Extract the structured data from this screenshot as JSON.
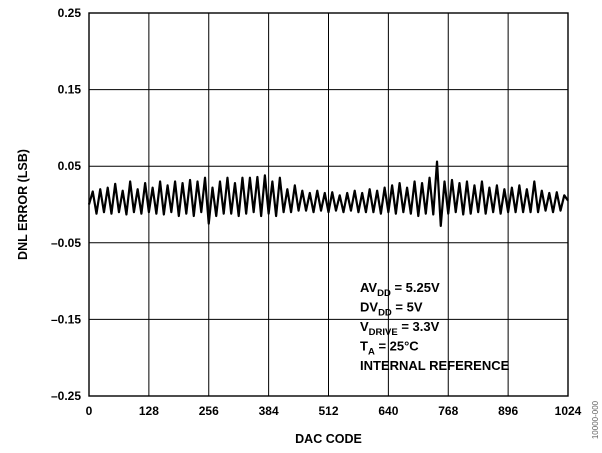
{
  "chart_data": {
    "type": "line",
    "title": "",
    "xlabel": "DAC CODE",
    "ylabel": "DNL ERROR (LSB)",
    "xlim": [
      0,
      1024
    ],
    "ylim": [
      -0.25,
      0.25
    ],
    "x_ticks": [
      0,
      128,
      256,
      384,
      512,
      640,
      768,
      896,
      1024
    ],
    "y_ticks": [
      0.25,
      0.15,
      0.05,
      -0.05,
      -0.15,
      -0.25
    ],
    "x_tick_labels": [
      "0",
      "128",
      "256",
      "384",
      "512",
      "640",
      "768",
      "896",
      "1024"
    ],
    "y_tick_labels": [
      "0.25",
      "0.15",
      "0.05",
      "–0.05",
      "–0.15",
      "–0.25"
    ],
    "grid": true,
    "series": [
      {
        "color": "#000000",
        "x": [
          0,
          8,
          16,
          24,
          32,
          40,
          48,
          56,
          64,
          72,
          80,
          88,
          96,
          104,
          112,
          120,
          128,
          136,
          144,
          152,
          160,
          168,
          176,
          184,
          192,
          200,
          208,
          216,
          224,
          232,
          240,
          248,
          256,
          264,
          272,
          280,
          288,
          296,
          304,
          312,
          320,
          328,
          336,
          344,
          352,
          360,
          368,
          376,
          384,
          392,
          400,
          408,
          416,
          424,
          432,
          440,
          448,
          456,
          464,
          472,
          480,
          488,
          496,
          504,
          512,
          520,
          528,
          536,
          544,
          552,
          560,
          568,
          576,
          584,
          592,
          600,
          608,
          616,
          624,
          632,
          640,
          648,
          656,
          664,
          672,
          680,
          688,
          696,
          704,
          712,
          720,
          728,
          736,
          744,
          752,
          760,
          768,
          776,
          784,
          792,
          800,
          808,
          816,
          824,
          832,
          840,
          848,
          856,
          864,
          872,
          880,
          888,
          896,
          904,
          912,
          920,
          928,
          936,
          944,
          952,
          960,
          968,
          976,
          984,
          992,
          1000,
          1008,
          1016,
          1024
        ],
        "values": [
          0.0,
          0.017,
          -0.012,
          0.02,
          -0.01,
          0.022,
          -0.012,
          0.027,
          -0.01,
          0.018,
          -0.013,
          0.03,
          -0.01,
          0.02,
          -0.012,
          0.028,
          -0.01,
          0.022,
          -0.012,
          0.03,
          -0.013,
          0.025,
          -0.01,
          0.03,
          -0.015,
          0.028,
          -0.012,
          0.032,
          -0.015,
          0.03,
          -0.01,
          0.035,
          -0.025,
          0.022,
          -0.015,
          0.03,
          -0.012,
          0.035,
          -0.012,
          0.028,
          -0.015,
          0.035,
          -0.012,
          0.035,
          -0.01,
          0.036,
          -0.015,
          0.038,
          -0.012,
          0.03,
          -0.015,
          0.035,
          -0.01,
          0.02,
          -0.01,
          0.025,
          -0.008,
          0.018,
          -0.008,
          0.015,
          -0.01,
          0.018,
          -0.008,
          0.015,
          -0.01,
          0.016,
          -0.008,
          0.012,
          -0.01,
          0.015,
          -0.008,
          0.018,
          -0.01,
          0.015,
          -0.01,
          0.02,
          -0.01,
          0.018,
          -0.012,
          0.022,
          -0.01,
          0.025,
          -0.012,
          0.028,
          -0.01,
          0.022,
          -0.012,
          0.03,
          -0.015,
          0.028,
          -0.012,
          0.035,
          -0.013,
          0.056,
          -0.028,
          0.03,
          -0.012,
          0.032,
          -0.01,
          0.028,
          -0.013,
          0.03,
          -0.012,
          0.025,
          -0.01,
          0.03,
          -0.012,
          0.022,
          -0.01,
          0.025,
          -0.012,
          0.02,
          -0.01,
          0.022,
          -0.01,
          0.025,
          -0.01,
          0.02,
          -0.01,
          0.03,
          -0.01,
          0.018,
          -0.008,
          0.015,
          -0.01,
          0.016,
          -0.008,
          0.012,
          0.005
        ]
      }
    ],
    "annotation_lines": [
      [
        "AV",
        "DD",
        " = 5.25V"
      ],
      [
        "DV",
        "DD",
        " = 5V"
      ],
      [
        "V",
        "DRIVE",
        " = 3.3V"
      ],
      [
        "T",
        "A",
        " = 25°C"
      ],
      [
        "INTERNAL REFERENCE",
        "",
        ""
      ]
    ],
    "figure_id": "10000-000"
  }
}
